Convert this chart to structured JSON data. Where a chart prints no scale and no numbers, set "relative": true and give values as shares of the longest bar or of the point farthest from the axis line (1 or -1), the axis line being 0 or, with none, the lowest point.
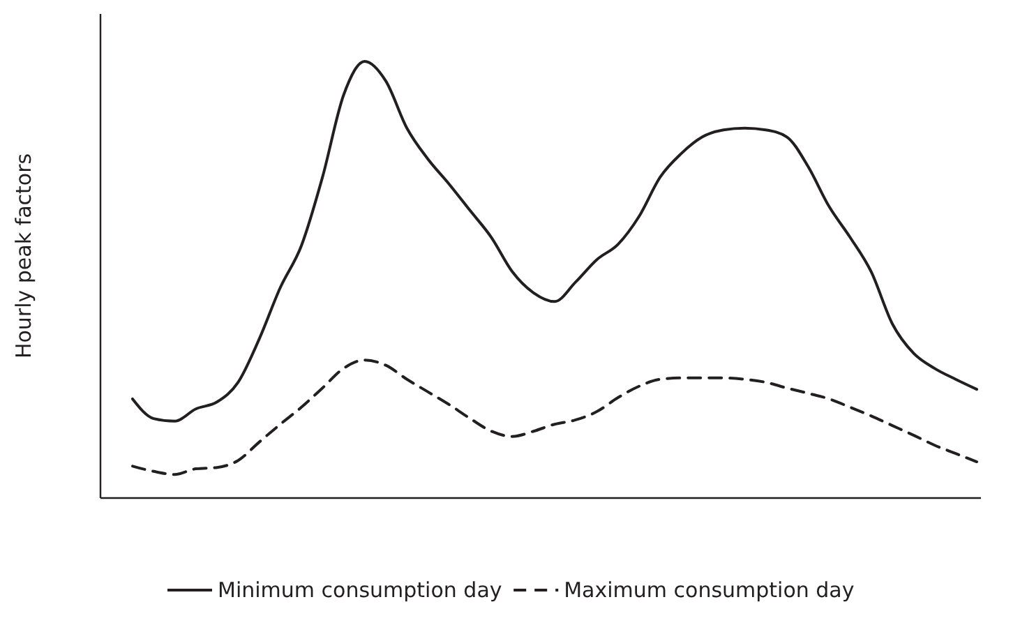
{
  "chart_data": {
    "type": "line",
    "relative": true,
    "ylabel": "Hourly peak factors",
    "legend": "bottom",
    "marker": "none",
    "categories": [
      null,
      null,
      null,
      null,
      null,
      null,
      null,
      null,
      null,
      null,
      null,
      null,
      null,
      null,
      null,
      null,
      null,
      null,
      null,
      null,
      null,
      null,
      null,
      null,
      null,
      null,
      null,
      null,
      null,
      null,
      null,
      null,
      null,
      null,
      null,
      null,
      null,
      null,
      null,
      null,
      null
    ],
    "series": [
      {
        "name": "Minimum consumption day",
        "color": "#231f20",
        "line_style": "solid",
        "values": [
          0.227,
          0.182,
          0.176,
          0.204,
          0.22,
          0.265,
          0.364,
          0.482,
          0.578,
          0.735,
          0.923,
          1,
          0.955,
          0.847,
          0.776,
          0.719,
          0.658,
          0.597,
          0.518,
          0.47,
          0.45,
          0.495,
          0.546,
          0.581,
          0.645,
          0.735,
          0.789,
          0.827,
          0.843,
          0.847,
          0.843,
          0.827,
          0.76,
          0.668,
          0.597,
          0.518,
          0.399,
          0.332,
          0.297,
          0.272,
          0.249
        ]
      },
      {
        "name": "Maximum consumption day",
        "color": "#231f20",
        "line_style": "dashed",
        "values": [
          0.073,
          0.061,
          0.054,
          0.067,
          0.07,
          0.086,
          0.128,
          0.169,
          0.208,
          0.252,
          0.297,
          0.316,
          0.304,
          0.272,
          0.243,
          0.214,
          0.182,
          0.153,
          0.141,
          0.153,
          0.169,
          0.179,
          0.198,
          0.23,
          0.256,
          0.272,
          0.275,
          0.275,
          0.275,
          0.272,
          0.265,
          0.252,
          0.24,
          0.227,
          0.208,
          0.188,
          0.166,
          0.144,
          0.121,
          0.102,
          0.083
        ]
      }
    ]
  }
}
